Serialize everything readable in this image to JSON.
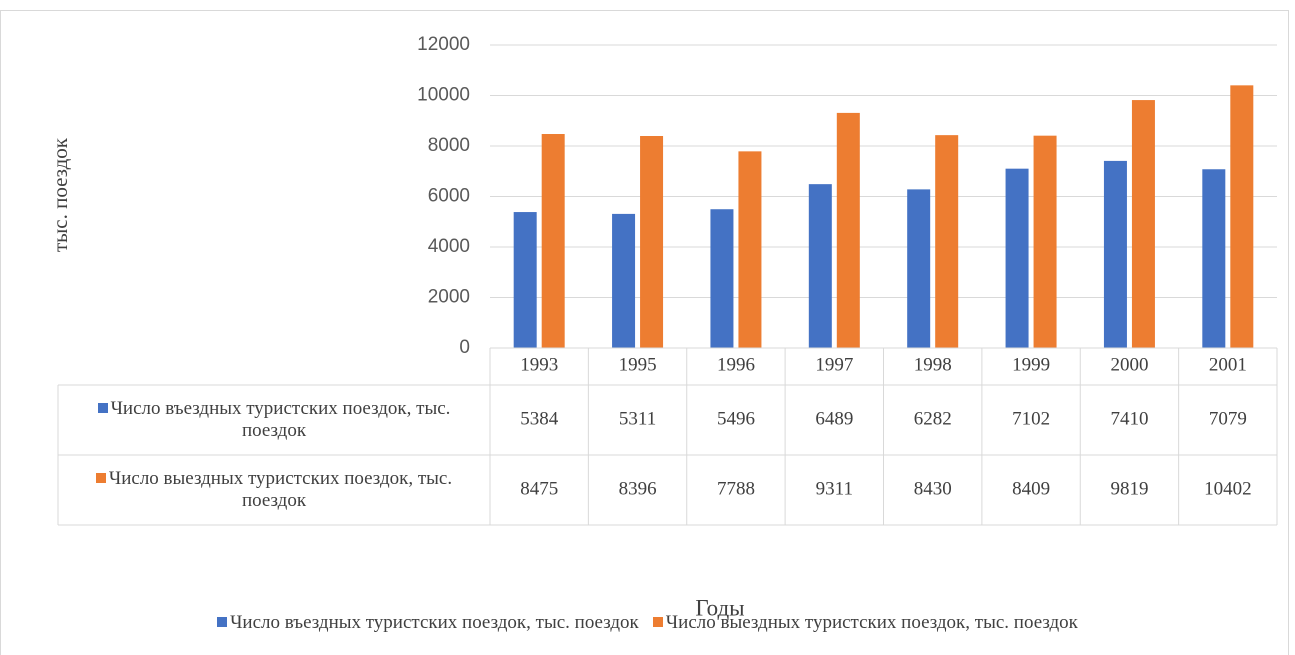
{
  "chart_data": {
    "type": "bar",
    "y_label": "тыс. поездок",
    "x_label": "Годы",
    "categories": [
      "1993",
      "1995",
      "1996",
      "1997",
      "1998",
      "1999",
      "2000",
      "2001"
    ],
    "series": [
      {
        "name": "Число въездных туристских поездок, тыс. поездок",
        "color": "#4472c4",
        "values": [
          5384,
          5311,
          5496,
          6489,
          6282,
          7102,
          7410,
          7079
        ]
      },
      {
        "name": "Число выездных туристских поездок, тыс. поездок",
        "color": "#ed7d31",
        "values": [
          8475,
          8396,
          7788,
          9311,
          8430,
          8409,
          9819,
          10402
        ]
      }
    ],
    "ylim": [
      0,
      12000
    ],
    "yticks": [
      0,
      2000,
      4000,
      6000,
      8000,
      10000,
      12000
    ],
    "grid": true,
    "legend": "bottom",
    "data_table": true
  }
}
